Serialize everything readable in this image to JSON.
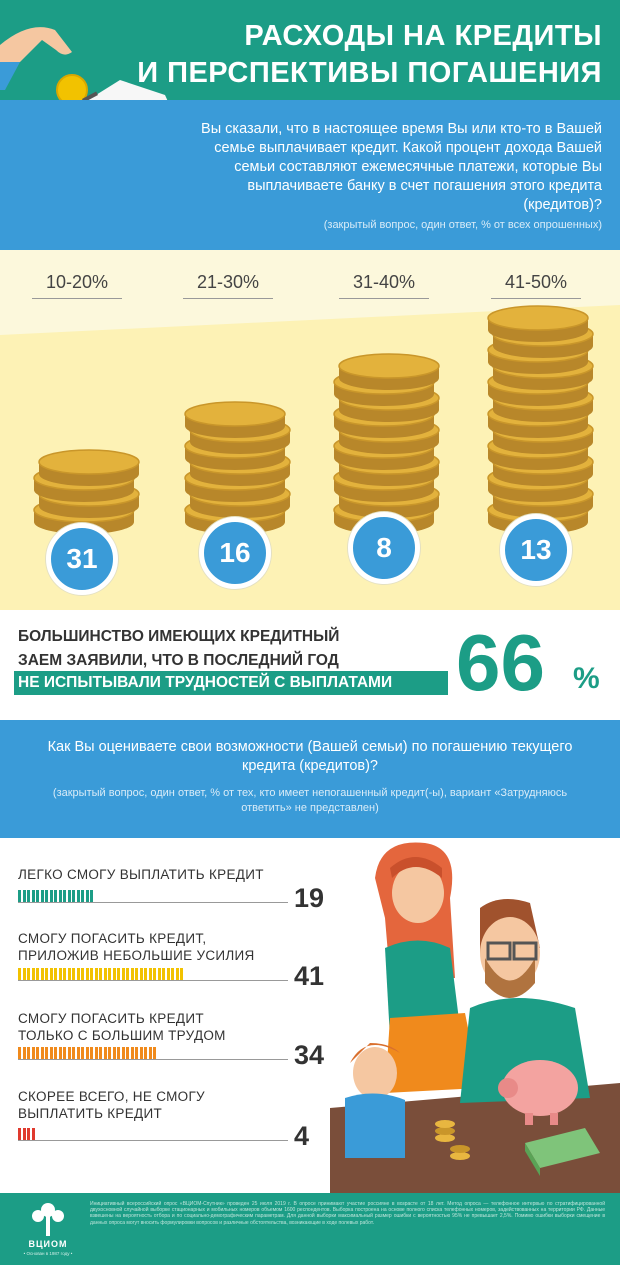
{
  "header": {
    "title_line1": "РАСХОДЫ НА КРЕДИТЫ",
    "title_line2": "И ПЕРСПЕКТИВЫ ПОГАШЕНИЯ"
  },
  "question1": {
    "text": "Вы сказали, что в настоящее время Вы или кто-то в Вашей семье выплачивает кредит. Какой процент дохода Вашей семьи составляют ежемесячные платежи, которые Вы выплачиваете банку в счет погашения этого кредита (кредитов)?",
    "note": "(закрытый вопрос, один ответ, % от всех опрошенных)"
  },
  "chart_data": [
    {
      "type": "bar",
      "categories": [
        "10-20%",
        "21-30%",
        "31-40%",
        "41-50%"
      ],
      "values": [
        31,
        16,
        8,
        13
      ]
    },
    {
      "type": "bar",
      "categories": [
        "ЛЕГКО СМОГУ ВЫПЛАТИТЬ КРЕДИТ",
        "СМОГУ ПОГАСИТЬ КРЕДИТ, ПРИЛОЖИВ НЕБОЛЬШИЕ УСИЛИЯ",
        "СМОГУ ПОГАСИТЬ КРЕДИТ ТОЛЬКО С БОЛЬШИМ ТРУДОМ",
        "СКОРЕЕ ВСЕГО, НЕ СМОГУ ВЫПЛАТИТЬ КРЕДИТ"
      ],
      "values": [
        19,
        41,
        34,
        4
      ]
    }
  ],
  "summary": {
    "line1": "БОЛЬШИНСТВО ИМЕЮЩИХ КРЕДИТНЫЙ",
    "line2": "ЗАЕМ ЗАЯВИЛИ, ЧТО В ПОСЛЕДНИЙ ГОД",
    "highlight": "НЕ ИСПЫТЫВАЛИ ТРУДНОСТЕЙ С ВЫПЛАТАМИ",
    "value": "66",
    "unit": "%"
  },
  "question2": {
    "text": "Как Вы оцениваете свои возможности (Вашей семьи) по погашению текущего кредита (кредитов)?",
    "note": "(закрытый вопрос, один ответ, % от тех, кто имеет непогашенный кредит(-ы), вариант «Затрудняюсь ответить» не представлен)"
  },
  "answers": [
    {
      "line1": "ЛЕГКО СМОГУ ВЫПЛАТИТЬ КРЕДИТ",
      "line2": "",
      "value": "19",
      "color": "#1c9d86"
    },
    {
      "line1": "СМОГУ ПОГАСИТЬ КРЕДИТ,",
      "line2": "ПРИЛОЖИВ НЕБОЛЬШИЕ УСИЛИЯ",
      "value": "41",
      "color": "#f2c200"
    },
    {
      "line1": "СМОГУ ПОГАСИТЬ КРЕДИТ",
      "line2": "ТОЛЬКО С БОЛЬШИМ ТРУДОМ",
      "value": "34",
      "color": "#f08a1c"
    },
    {
      "line1": "СКОРЕЕ ВСЕГО, НЕ СМОГУ",
      "line2": "ВЫПЛАТИТЬ КРЕДИТ",
      "value": "4",
      "color": "#e03a2e"
    }
  ],
  "footer": {
    "logo": "ВЦИОМ",
    "logo_sub": "• Основан в 1987 году •",
    "fine_print": "Инициативный всероссийский опрос «ВЦИОМ-Спутник» проведен 25 июля 2019 г. В опросе принимают участие россияне в возрасте от 18 лет. Метод опроса — телефонное интервью по стратифицированной двухосновной случайной выборке стационарных и мобильных номеров объемом 1600 респондентов. Выборка построена на основе полного списка телефонных номеров, задействованных на территории РФ. Данные взвешены на вероятность отбора и по социально-демографическим параметрам. Для данной выборки максимальный размер ошибки с вероятностью 95% не превышает 2,5%. Помимо ошибки выборки смещение в данных опроса могут вносить формулировки вопросов и различные обстоятельства, возникающие в ходе полевых работ."
  }
}
